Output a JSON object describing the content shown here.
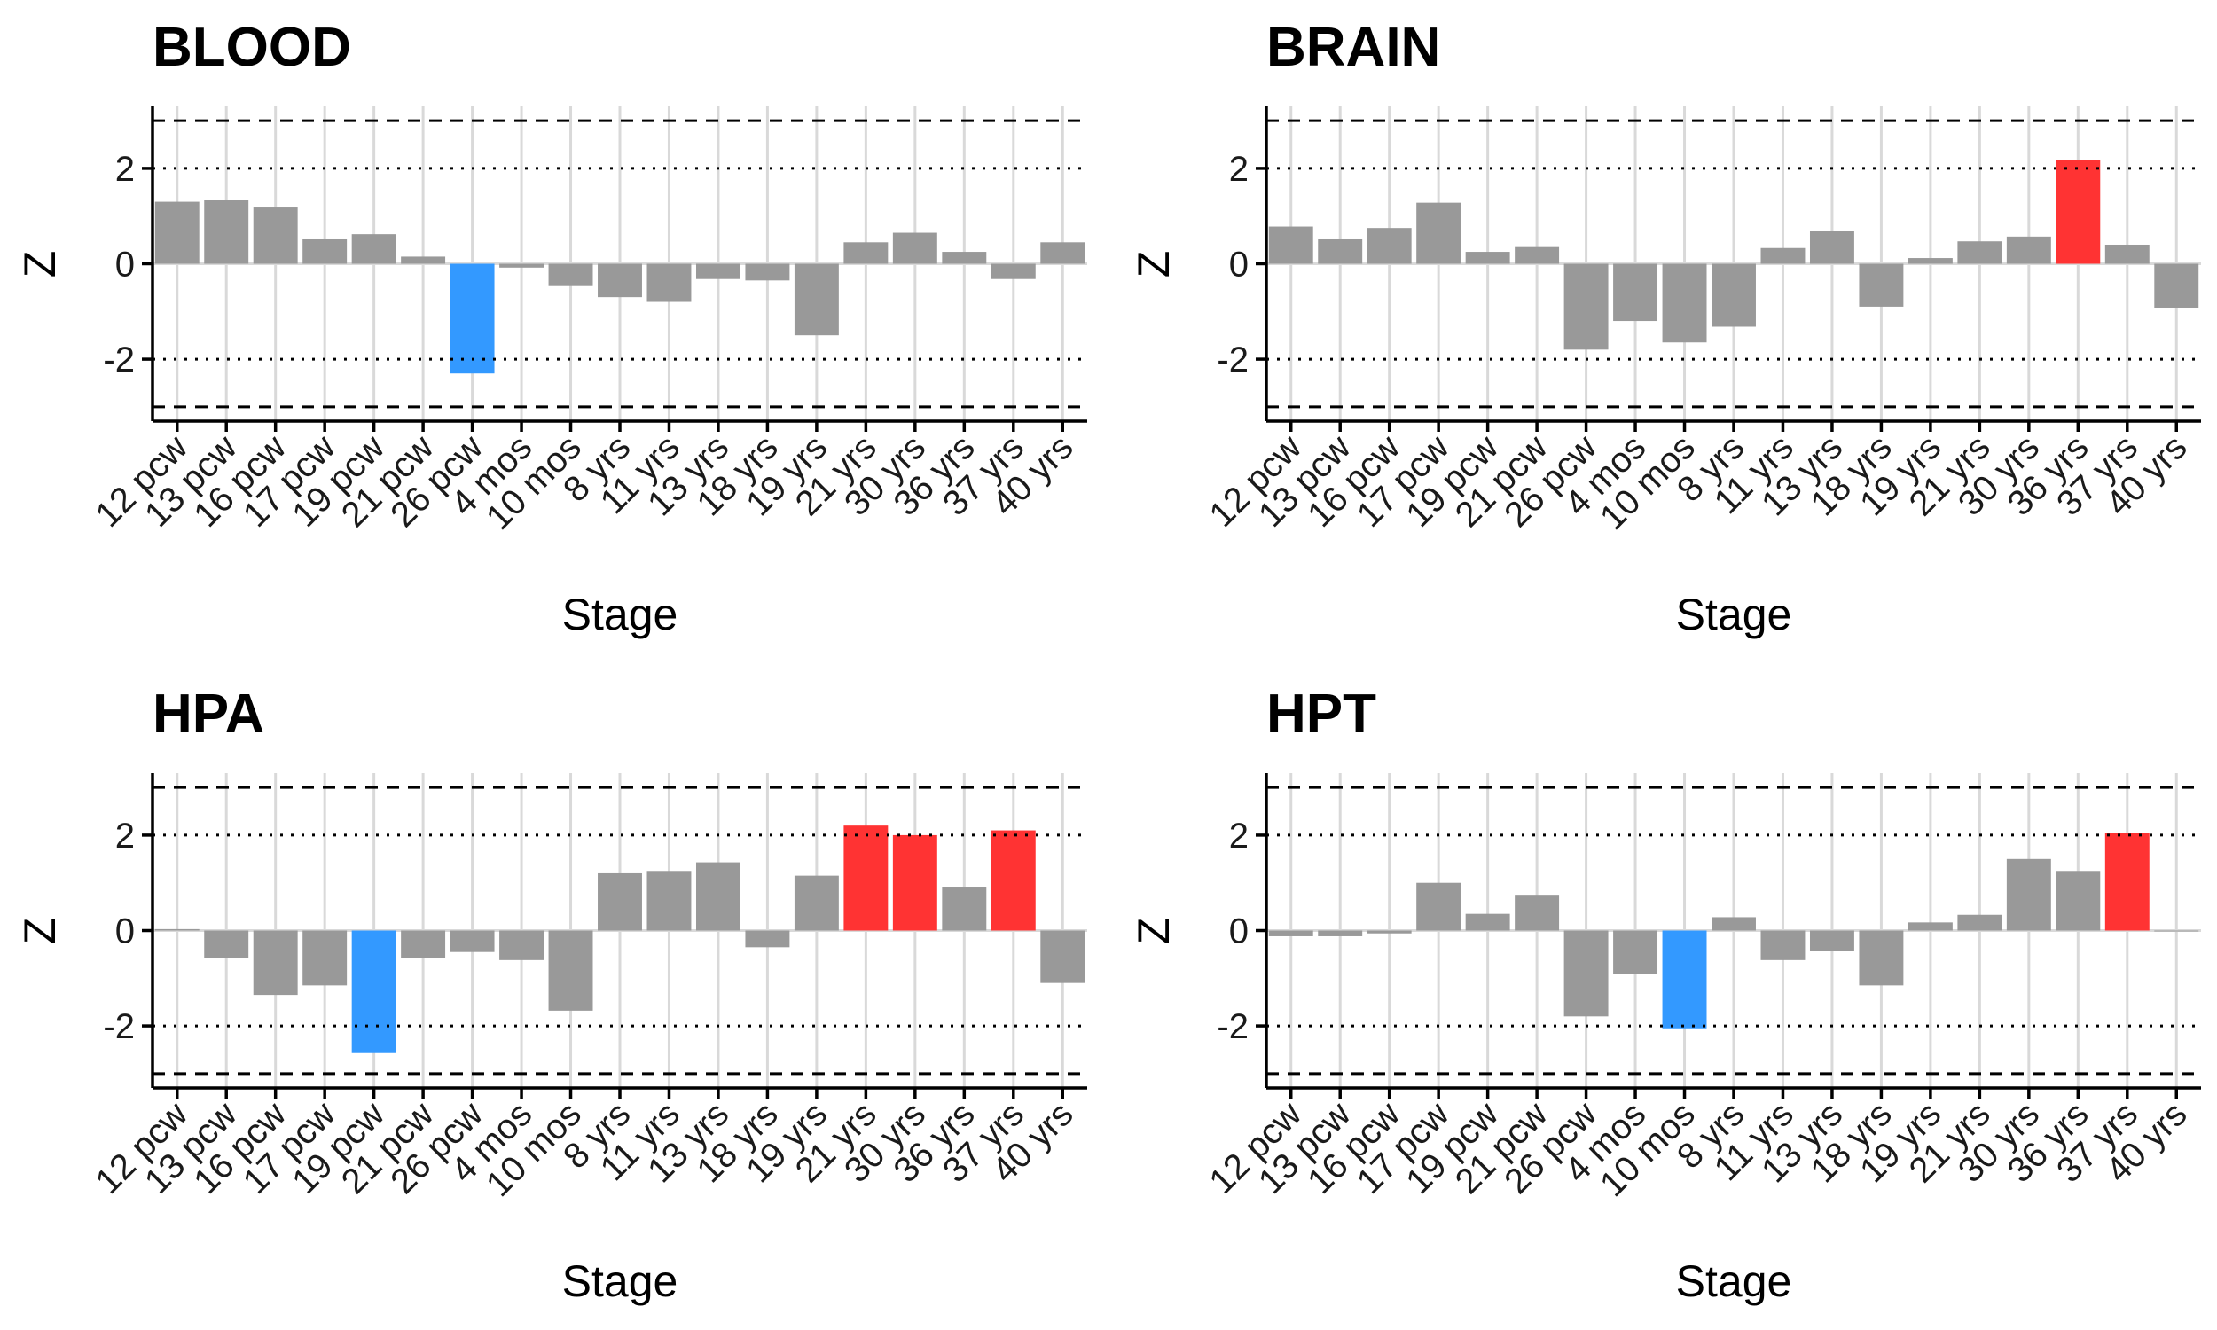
{
  "colors": {
    "neutral": "#999999",
    "low": "#3399FF",
    "high": "#FF3333",
    "grid": "#D9D9D9",
    "axis": "#000000"
  },
  "chart_data": [
    {
      "type": "bar",
      "title": "BLOOD",
      "xlabel": "Stage",
      "ylabel": "Z",
      "ylim": [
        -3.3,
        3.3
      ],
      "yticks": [
        -2,
        0,
        2
      ],
      "reference_lines": [
        {
          "y": 3,
          "style": "dashed"
        },
        {
          "y": 2,
          "style": "dotted"
        },
        {
          "y": -2,
          "style": "dotted"
        },
        {
          "y": -3,
          "style": "dashed"
        }
      ],
      "categories": [
        "12 pcw",
        "13 pcw",
        "16 pcw",
        "17 pcw",
        "19 pcw",
        "21 pcw",
        "26 pcw",
        "4 mos",
        "10 mos",
        "8 yrs",
        "11 yrs",
        "13 yrs",
        "18 yrs",
        "19 yrs",
        "21 yrs",
        "30 yrs",
        "36 yrs",
        "37 yrs",
        "40 yrs"
      ],
      "values": [
        1.3,
        1.33,
        1.18,
        0.53,
        0.62,
        0.15,
        -2.3,
        -0.08,
        -0.45,
        -0.7,
        -0.8,
        -0.32,
        -0.35,
        -1.5,
        0.45,
        0.65,
        0.25,
        -0.32,
        0.45
      ],
      "highlight": [
        "neutral",
        "neutral",
        "neutral",
        "neutral",
        "neutral",
        "neutral",
        "low",
        "neutral",
        "neutral",
        "neutral",
        "neutral",
        "neutral",
        "neutral",
        "neutral",
        "neutral",
        "neutral",
        "neutral",
        "neutral",
        "neutral"
      ]
    },
    {
      "type": "bar",
      "title": "BRAIN",
      "xlabel": "Stage",
      "ylabel": "Z",
      "ylim": [
        -3.3,
        3.3
      ],
      "yticks": [
        -2,
        0,
        2
      ],
      "reference_lines": [
        {
          "y": 3,
          "style": "dashed"
        },
        {
          "y": 2,
          "style": "dotted"
        },
        {
          "y": -2,
          "style": "dotted"
        },
        {
          "y": -3,
          "style": "dashed"
        }
      ],
      "categories": [
        "12 pcw",
        "13 pcw",
        "16 pcw",
        "17 pcw",
        "19 pcw",
        "21 pcw",
        "26 pcw",
        "4 mos",
        "10 mos",
        "8 yrs",
        "11 yrs",
        "13 yrs",
        "18 yrs",
        "19 yrs",
        "21 yrs",
        "30 yrs",
        "36 yrs",
        "37 yrs",
        "40 yrs"
      ],
      "values": [
        0.78,
        0.53,
        0.75,
        1.28,
        0.25,
        0.35,
        -1.8,
        -1.2,
        -1.65,
        -1.32,
        0.33,
        0.68,
        -0.9,
        0.12,
        0.47,
        0.57,
        2.18,
        0.4,
        -0.92
      ],
      "highlight": [
        "neutral",
        "neutral",
        "neutral",
        "neutral",
        "neutral",
        "neutral",
        "neutral",
        "neutral",
        "neutral",
        "neutral",
        "neutral",
        "neutral",
        "neutral",
        "neutral",
        "neutral",
        "neutral",
        "high",
        "neutral",
        "neutral"
      ]
    },
    {
      "type": "bar",
      "title": "HPA",
      "xlabel": "Stage",
      "ylabel": "Z",
      "ylim": [
        -3.3,
        3.3
      ],
      "yticks": [
        -2,
        0,
        2
      ],
      "reference_lines": [
        {
          "y": 3,
          "style": "dashed"
        },
        {
          "y": 2,
          "style": "dotted"
        },
        {
          "y": -2,
          "style": "dotted"
        },
        {
          "y": -3,
          "style": "dashed"
        }
      ],
      "categories": [
        "12 pcw",
        "13 pcw",
        "16 pcw",
        "17 pcw",
        "19 pcw",
        "21 pcw",
        "26 pcw",
        "4 mos",
        "10 mos",
        "8 yrs",
        "11 yrs",
        "13 yrs",
        "18 yrs",
        "19 yrs",
        "21 yrs",
        "30 yrs",
        "36 yrs",
        "37 yrs",
        "40 yrs"
      ],
      "values": [
        0.03,
        -0.57,
        -1.35,
        -1.15,
        -2.57,
        -0.57,
        -0.45,
        -0.62,
        -1.68,
        1.2,
        1.25,
        1.43,
        -0.35,
        1.15,
        2.2,
        2.0,
        0.92,
        2.1,
        -1.1
      ],
      "highlight": [
        "neutral",
        "neutral",
        "neutral",
        "neutral",
        "low",
        "neutral",
        "neutral",
        "neutral",
        "neutral",
        "neutral",
        "neutral",
        "neutral",
        "neutral",
        "neutral",
        "high",
        "high",
        "neutral",
        "high",
        "neutral"
      ]
    },
    {
      "type": "bar",
      "title": "HPT",
      "xlabel": "Stage",
      "ylabel": "Z",
      "ylim": [
        -3.3,
        3.3
      ],
      "yticks": [
        -2,
        0,
        2
      ],
      "reference_lines": [
        {
          "y": 3,
          "style": "dashed"
        },
        {
          "y": 2,
          "style": "dotted"
        },
        {
          "y": -2,
          "style": "dotted"
        },
        {
          "y": -3,
          "style": "dashed"
        }
      ],
      "categories": [
        "12 pcw",
        "13 pcw",
        "16 pcw",
        "17 pcw",
        "19 pcw",
        "21 pcw",
        "26 pcw",
        "4 mos",
        "10 mos",
        "8 yrs",
        "11 yrs",
        "13 yrs",
        "18 yrs",
        "19 yrs",
        "21 yrs",
        "30 yrs",
        "36 yrs",
        "37 yrs",
        "40 yrs"
      ],
      "values": [
        -0.12,
        -0.12,
        -0.06,
        1.0,
        0.35,
        0.75,
        -1.8,
        -0.92,
        -2.05,
        0.28,
        -0.62,
        -0.42,
        -1.15,
        0.17,
        0.33,
        1.5,
        1.25,
        2.05,
        0.0
      ],
      "highlight": [
        "neutral",
        "neutral",
        "neutral",
        "neutral",
        "neutral",
        "neutral",
        "neutral",
        "neutral",
        "low",
        "neutral",
        "neutral",
        "neutral",
        "neutral",
        "neutral",
        "neutral",
        "neutral",
        "neutral",
        "high",
        "neutral"
      ]
    }
  ]
}
